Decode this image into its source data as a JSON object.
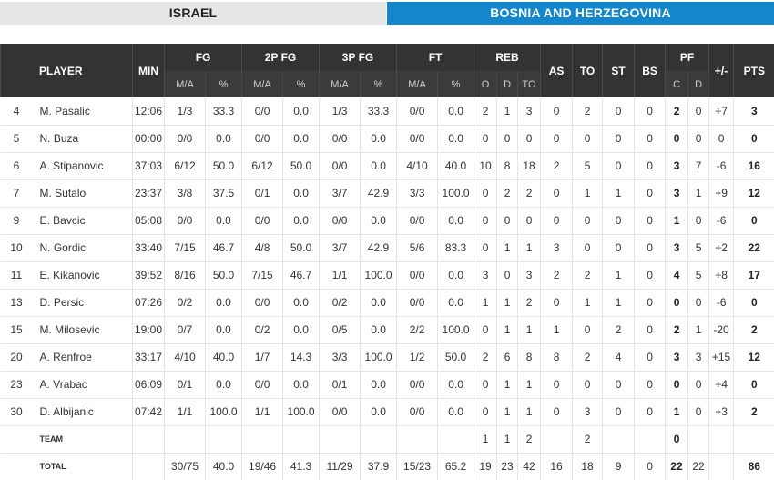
{
  "tabs": [
    {
      "label": "ISRAEL",
      "active": false
    },
    {
      "label": "BOSNIA AND HERZEGOVINA",
      "active": true
    }
  ],
  "header": {
    "player": "PLAYER",
    "min": "MIN",
    "fg": "FG",
    "fg2": "2P FG",
    "fg3": "3P FG",
    "ft": "FT",
    "reb": "REB",
    "as": "AS",
    "to": "TO",
    "st": "ST",
    "bs": "BS",
    "pf": "PF",
    "pm": "+/-",
    "pts": "PTS",
    "ma": "M/A",
    "pct": "%",
    "o": "O",
    "d": "D",
    "tot": "TO",
    "c": "C",
    "pfd": "D"
  },
  "players": [
    {
      "num": "4",
      "name": "M. Pasalic",
      "min": "12:06",
      "fg": "1/3",
      "fg_pct": "33.3",
      "fg2": "0/0",
      "fg2_pct": "0.0",
      "fg3": "1/3",
      "fg3_pct": "33.3",
      "ft": "0/0",
      "ft_pct": "0.0",
      "o": "2",
      "d": "1",
      "reb": "3",
      "as": "0",
      "to": "2",
      "st": "0",
      "bs": "0",
      "pf_c": "2",
      "pf_d": "0",
      "pm": "+7",
      "pts": "3"
    },
    {
      "num": "5",
      "name": "N. Buza",
      "min": "00:00",
      "fg": "0/0",
      "fg_pct": "0.0",
      "fg2": "0/0",
      "fg2_pct": "0.0",
      "fg3": "0/0",
      "fg3_pct": "0.0",
      "ft": "0/0",
      "ft_pct": "0.0",
      "o": "0",
      "d": "0",
      "reb": "0",
      "as": "0",
      "to": "0",
      "st": "0",
      "bs": "0",
      "pf_c": "0",
      "pf_d": "0",
      "pm": "0",
      "pts": "0"
    },
    {
      "num": "6",
      "name": "A. Stipanovic",
      "min": "37:03",
      "fg": "6/12",
      "fg_pct": "50.0",
      "fg2": "6/12",
      "fg2_pct": "50.0",
      "fg3": "0/0",
      "fg3_pct": "0.0",
      "ft": "4/10",
      "ft_pct": "40.0",
      "o": "10",
      "d": "8",
      "reb": "18",
      "as": "2",
      "to": "5",
      "st": "0",
      "bs": "0",
      "pf_c": "3",
      "pf_d": "7",
      "pm": "-6",
      "pts": "16"
    },
    {
      "num": "7",
      "name": "M. Sutalo",
      "min": "23:37",
      "fg": "3/8",
      "fg_pct": "37.5",
      "fg2": "0/1",
      "fg2_pct": "0.0",
      "fg3": "3/7",
      "fg3_pct": "42.9",
      "ft": "3/3",
      "ft_pct": "100.0",
      "o": "0",
      "d": "2",
      "reb": "2",
      "as": "0",
      "to": "1",
      "st": "1",
      "bs": "0",
      "pf_c": "3",
      "pf_d": "1",
      "pm": "+9",
      "pts": "12"
    },
    {
      "num": "9",
      "name": "E. Bavcic",
      "min": "05:08",
      "fg": "0/0",
      "fg_pct": "0.0",
      "fg2": "0/0",
      "fg2_pct": "0.0",
      "fg3": "0/0",
      "fg3_pct": "0.0",
      "ft": "0/0",
      "ft_pct": "0.0",
      "o": "0",
      "d": "0",
      "reb": "0",
      "as": "0",
      "to": "0",
      "st": "0",
      "bs": "0",
      "pf_c": "1",
      "pf_d": "0",
      "pm": "-6",
      "pts": "0"
    },
    {
      "num": "10",
      "name": "N. Gordic",
      "min": "33:40",
      "fg": "7/15",
      "fg_pct": "46.7",
      "fg2": "4/8",
      "fg2_pct": "50.0",
      "fg3": "3/7",
      "fg3_pct": "42.9",
      "ft": "5/6",
      "ft_pct": "83.3",
      "o": "0",
      "d": "1",
      "reb": "1",
      "as": "3",
      "to": "0",
      "st": "0",
      "bs": "0",
      "pf_c": "3",
      "pf_d": "5",
      "pm": "+2",
      "pts": "22"
    },
    {
      "num": "11",
      "name": "E. Kikanovic",
      "min": "39:52",
      "fg": "8/16",
      "fg_pct": "50.0",
      "fg2": "7/15",
      "fg2_pct": "46.7",
      "fg3": "1/1",
      "fg3_pct": "100.0",
      "ft": "0/0",
      "ft_pct": "0.0",
      "o": "3",
      "d": "0",
      "reb": "3",
      "as": "2",
      "to": "2",
      "st": "1",
      "bs": "0",
      "pf_c": "4",
      "pf_d": "5",
      "pm": "+8",
      "pts": "17"
    },
    {
      "num": "13",
      "name": "D. Persic",
      "min": "07:26",
      "fg": "0/2",
      "fg_pct": "0.0",
      "fg2": "0/0",
      "fg2_pct": "0.0",
      "fg3": "0/2",
      "fg3_pct": "0.0",
      "ft": "0/0",
      "ft_pct": "0.0",
      "o": "1",
      "d": "1",
      "reb": "2",
      "as": "0",
      "to": "1",
      "st": "1",
      "bs": "0",
      "pf_c": "0",
      "pf_d": "0",
      "pm": "-6",
      "pts": "0"
    },
    {
      "num": "15",
      "name": "M. Milosevic",
      "min": "19:00",
      "fg": "0/7",
      "fg_pct": "0.0",
      "fg2": "0/2",
      "fg2_pct": "0.0",
      "fg3": "0/5",
      "fg3_pct": "0.0",
      "ft": "2/2",
      "ft_pct": "100.0",
      "o": "0",
      "d": "1",
      "reb": "1",
      "as": "1",
      "to": "0",
      "st": "2",
      "bs": "0",
      "pf_c": "2",
      "pf_d": "1",
      "pm": "-20",
      "pts": "2"
    },
    {
      "num": "20",
      "name": "A. Renfroe",
      "min": "33:17",
      "fg": "4/10",
      "fg_pct": "40.0",
      "fg2": "1/7",
      "fg2_pct": "14.3",
      "fg3": "3/3",
      "fg3_pct": "100.0",
      "ft": "1/2",
      "ft_pct": "50.0",
      "o": "2",
      "d": "6",
      "reb": "8",
      "as": "8",
      "to": "2",
      "st": "4",
      "bs": "0",
      "pf_c": "3",
      "pf_d": "3",
      "pm": "+15",
      "pts": "12"
    },
    {
      "num": "23",
      "name": "A. Vrabac",
      "min": "06:09",
      "fg": "0/1",
      "fg_pct": "0.0",
      "fg2": "0/0",
      "fg2_pct": "0.0",
      "fg3": "0/1",
      "fg3_pct": "0.0",
      "ft": "0/0",
      "ft_pct": "0.0",
      "o": "0",
      "d": "1",
      "reb": "1",
      "as": "0",
      "to": "0",
      "st": "0",
      "bs": "0",
      "pf_c": "0",
      "pf_d": "0",
      "pm": "+4",
      "pts": "0"
    },
    {
      "num": "30",
      "name": "D. Albijanic",
      "min": "07:42",
      "fg": "1/1",
      "fg_pct": "100.0",
      "fg2": "1/1",
      "fg2_pct": "100.0",
      "fg3": "0/0",
      "fg3_pct": "0.0",
      "ft": "0/0",
      "ft_pct": "0.0",
      "o": "0",
      "d": "1",
      "reb": "1",
      "as": "0",
      "to": "3",
      "st": "0",
      "bs": "0",
      "pf_c": "1",
      "pf_d": "0",
      "pm": "+3",
      "pts": "2"
    }
  ],
  "team": {
    "num": "",
    "name": "TEAM",
    "min": "",
    "fg": "",
    "fg_pct": "",
    "fg2": "",
    "fg2_pct": "",
    "fg3": "",
    "fg3_pct": "",
    "ft": "",
    "ft_pct": "",
    "o": "1",
    "d": "1",
    "reb": "2",
    "as": "",
    "to": "2",
    "st": "",
    "bs": "",
    "pf_c": "0",
    "pf_d": "",
    "pm": "",
    "pts": ""
  },
  "total": {
    "num": "",
    "name": "TOTAL",
    "min": "",
    "fg": "30/75",
    "fg_pct": "40.0",
    "fg2": "19/46",
    "fg2_pct": "41.3",
    "fg3": "11/29",
    "fg3_pct": "37.9",
    "ft": "15/23",
    "ft_pct": "65.2",
    "o": "19",
    "d": "23",
    "reb": "42",
    "as": "16",
    "to": "18",
    "st": "9",
    "bs": "0",
    "pf_c": "22",
    "pf_d": "22",
    "pm": "",
    "pts": "86"
  },
  "colors": {
    "active_tab": "#1486cc",
    "header_bg": "#333333",
    "inactive_tab": "#e6e6e6"
  }
}
